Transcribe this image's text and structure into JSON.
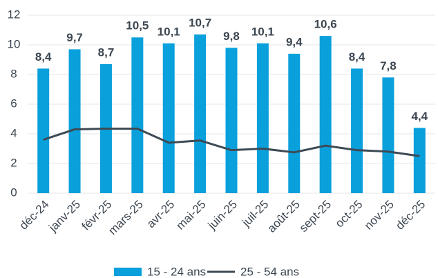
{
  "chart_data": {
    "type": "bar",
    "categories": [
      "déc-24",
      "janv-25",
      "févr-25",
      "mars-25",
      "avr-25",
      "mai-25",
      "juin-25",
      "juil-25",
      "août-25",
      "sept-25",
      "oct-25",
      "nov-25",
      "déc-25"
    ],
    "series": [
      {
        "name": "15 - 24 ans",
        "type": "bar",
        "color": "#0aa0dc",
        "values": [
          8.4,
          9.7,
          8.7,
          10.5,
          10.1,
          10.7,
          9.8,
          10.1,
          9.4,
          10.6,
          8.4,
          7.8,
          4.4
        ],
        "value_labels": [
          "8,4",
          "9,7",
          "8,7",
          "10,5",
          "10,1",
          "10,7",
          "9,8",
          "10,1",
          "9,4",
          "10,6",
          "8,4",
          "7,8",
          "4,4"
        ]
      },
      {
        "name": "25 - 54 ans",
        "type": "line",
        "color": "#3d4a54",
        "values": [
          3.6,
          4.3,
          4.35,
          4.35,
          3.4,
          3.55,
          2.9,
          3.0,
          2.75,
          3.2,
          2.9,
          2.8,
          2.5
        ]
      }
    ],
    "ylim": [
      0,
      12
    ],
    "yticks": [
      0,
      2,
      4,
      6,
      8,
      10,
      12
    ],
    "grid": true,
    "legend": "bottom"
  }
}
